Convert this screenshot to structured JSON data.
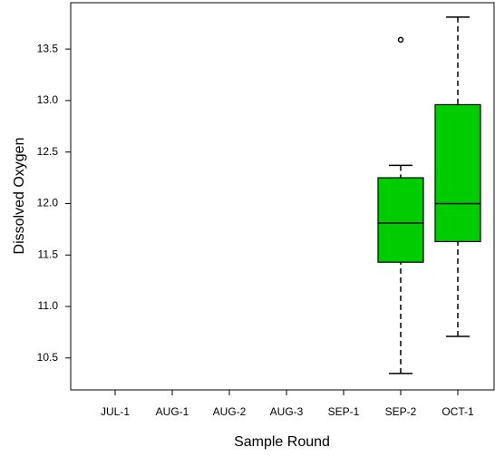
{
  "chart_data": {
    "type": "box",
    "x_label": "Sample Round",
    "y_label": "Dissolved Oxygen",
    "categories": [
      "JUL-1",
      "AUG-1",
      "AUG-2",
      "AUG-3",
      "SEP-1",
      "SEP-2",
      "OCT-1"
    ],
    "color": "#00cd00",
    "whislo": [
      null,
      null,
      null,
      null,
      null,
      10.35,
      10.71
    ],
    "q1": [
      null,
      null,
      null,
      null,
      null,
      11.43,
      11.63
    ],
    "median": [
      null,
      null,
      null,
      null,
      null,
      11.81,
      12.0
    ],
    "q3": [
      null,
      null,
      null,
      null,
      null,
      12.25,
      12.96
    ],
    "whishi": [
      null,
      null,
      null,
      null,
      null,
      12.37,
      13.81
    ],
    "outliers": [
      null,
      null,
      null,
      null,
      null,
      [
        13.59
      ],
      null
    ],
    "ylim": [
      10.19,
      13.95
    ],
    "yticks": [
      {
        "value": 10.5,
        "label": "10.5"
      },
      {
        "value": 11,
        "label": "11.0"
      },
      {
        "value": 11.5,
        "label": "11.5"
      },
      {
        "value": 12,
        "label": "12.0"
      },
      {
        "value": 12.5,
        "label": "12.5"
      },
      {
        "value": 13,
        "label": "13.0"
      },
      {
        "value": 13.5,
        "label": "13.5"
      }
    ]
  }
}
